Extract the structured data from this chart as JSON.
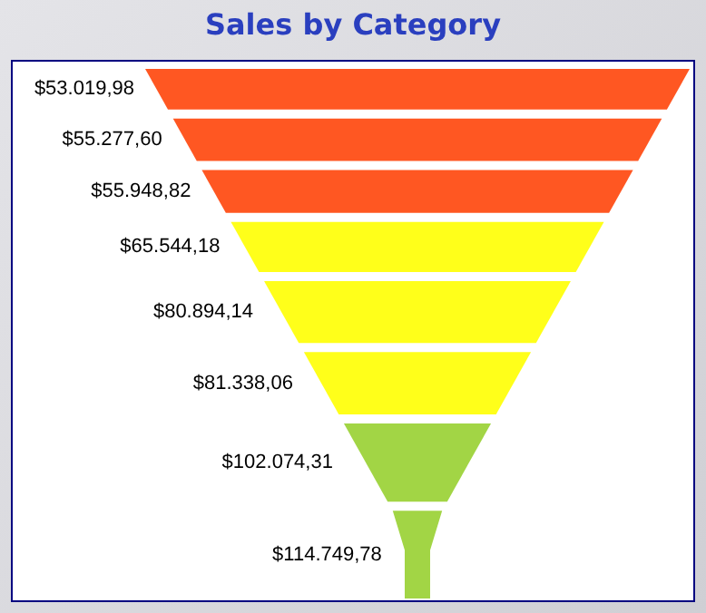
{
  "chart_data": {
    "type": "other",
    "title": "Sales by Category",
    "values": [
      53019.98,
      55277.6,
      55948.82,
      65544.18,
      80894.14,
      81338.06,
      102074.31,
      114749.78
    ],
    "value_labels": [
      "$53.019,98",
      "$55.277,60",
      "$55.948,82",
      "$65.544,18",
      "$80.894,14",
      "$81.338,06",
      "$102.074,31",
      "$114.749,78"
    ],
    "colors": [
      "#ff5722",
      "#ff5722",
      "#ff5722",
      "#ffff1a",
      "#ffff1a",
      "#ffff1a",
      "#a2d545",
      "#a2d545"
    ]
  }
}
